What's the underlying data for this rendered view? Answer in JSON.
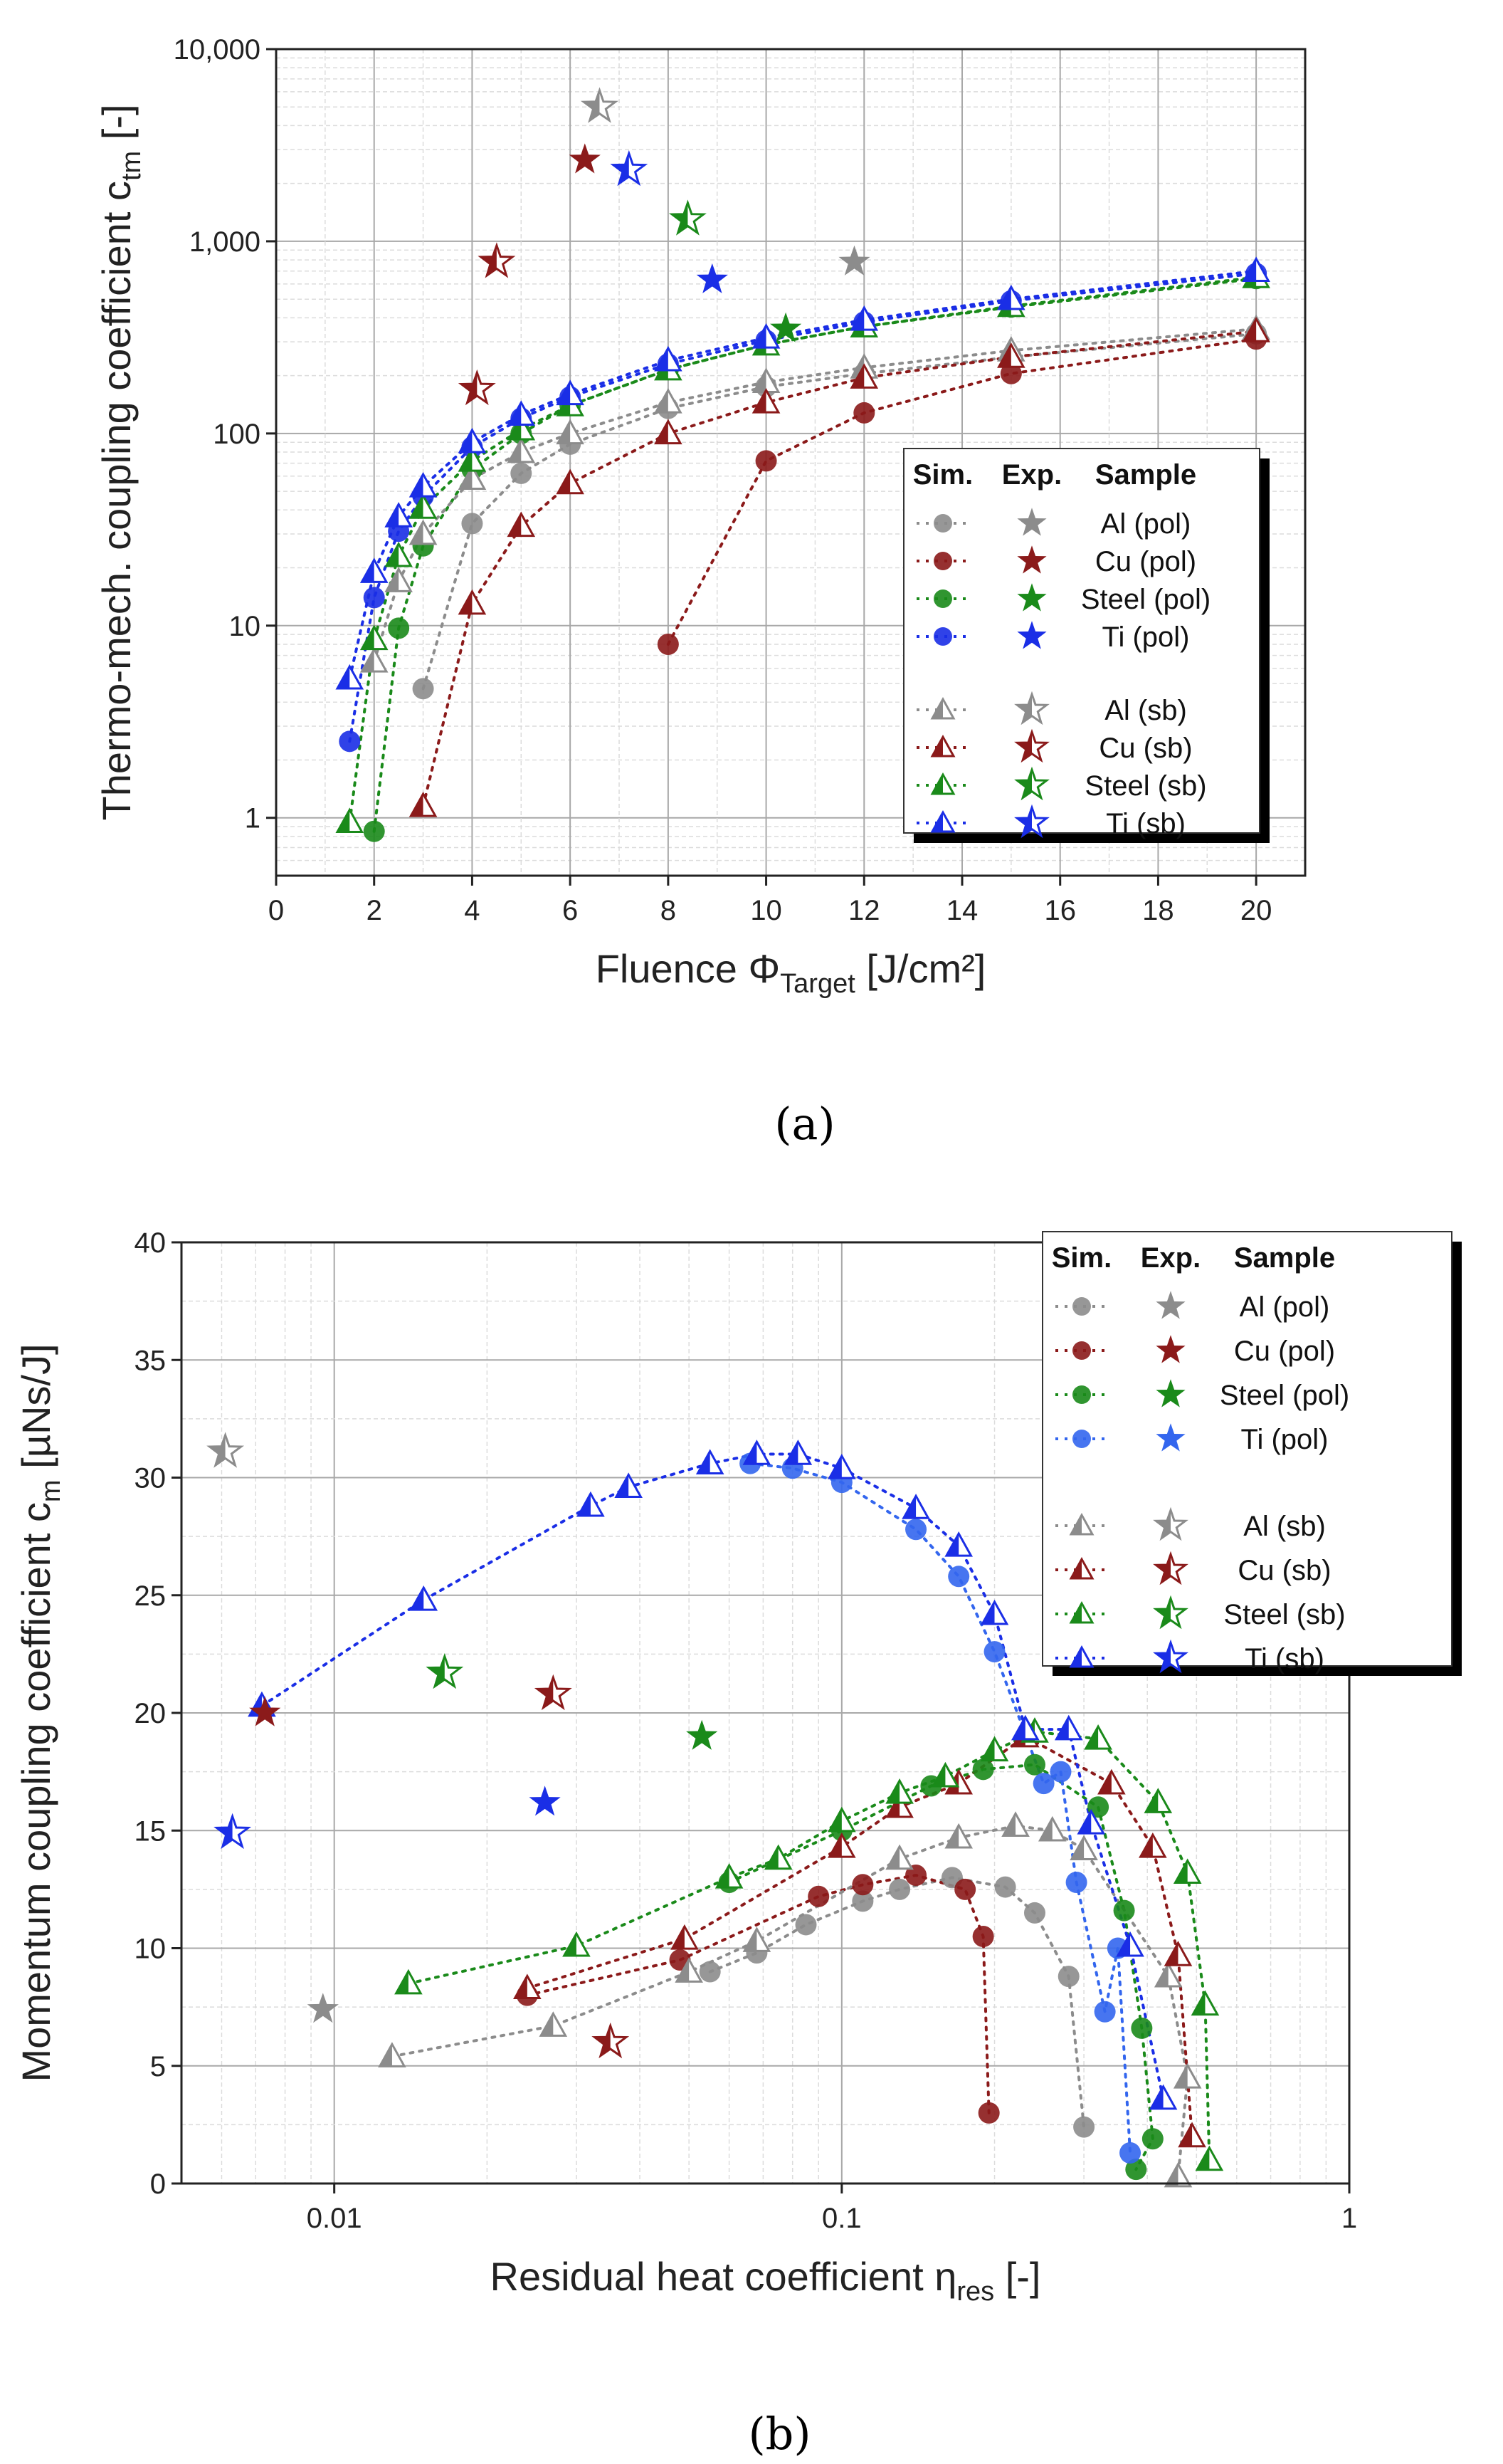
{
  "colors": {
    "Al": "#8c8c8c",
    "Cu": "#8b1a1a",
    "Steel": "#1a8a1a",
    "Ti": "#1a2ee6",
    "Ti_b": "#3366ee"
  },
  "chart_data": [
    {
      "type": "scatter",
      "panel_label": "(a)",
      "title": "",
      "ylabel": "Thermo-mech. coupling coefficient c",
      "ylabel_sub": "tm",
      "ylabel_suffix": " [-]",
      "xlabel": "Fluence Φ",
      "xlabel_sub": "Target",
      "xlabel_suffix": " [J/cm²]",
      "x_scale": "linear",
      "y_scale": "log",
      "xlim": [
        0,
        21
      ],
      "ylim": [
        0.5,
        10000
      ],
      "x_ticks": [
        0,
        2,
        4,
        6,
        8,
        10,
        12,
        14,
        16,
        18,
        20
      ],
      "x_tick_labels": [
        "0",
        "2",
        "4",
        "6",
        "8",
        "10",
        "12",
        "14",
        "16",
        "18",
        "20"
      ],
      "y_ticks": [
        1,
        10,
        100,
        1000,
        10000
      ],
      "y_tick_labels": [
        "1",
        "10",
        "100",
        "1,000",
        "10,000"
      ],
      "grid": true,
      "legend": {
        "placement": "bottom-right",
        "headers": [
          "Sim.",
          "Exp.",
          "Sample"
        ],
        "entries": [
          "Al (pol)",
          "Cu (pol)",
          "Steel (pol)",
          "Ti (pol)",
          "Al (sb)",
          "Cu (sb)",
          "Steel (sb)",
          "Ti (sb)"
        ]
      },
      "series": [
        {
          "name": "Al (pol) sim",
          "material": "Al",
          "marker": "circle",
          "x": [
            3,
            4,
            5,
            6,
            8,
            10,
            12,
            15,
            20
          ],
          "values": [
            4.7,
            34,
            62,
            88,
            135,
            175,
            205,
            250,
            330
          ]
        },
        {
          "name": "Cu (pol) sim",
          "material": "Cu",
          "marker": "circle",
          "x": [
            8,
            10,
            12,
            15,
            20
          ],
          "values": [
            8,
            72,
            128,
            205,
            310
          ]
        },
        {
          "name": "Steel (pol) sim",
          "material": "Steel",
          "marker": "circle",
          "x": [
            2,
            2.5,
            3,
            4,
            5,
            6,
            8,
            10,
            12,
            15,
            20
          ],
          "values": [
            0.85,
            9.7,
            26,
            65,
            100,
            140,
            215,
            290,
            360,
            455,
            640
          ]
        },
        {
          "name": "Ti (pol) sim",
          "material": "Ti",
          "marker": "circle",
          "x": [
            1.5,
            2,
            2.5,
            3,
            4,
            5,
            6,
            8,
            10,
            12,
            15,
            20
          ],
          "values": [
            2.5,
            14,
            31,
            47,
            85,
            120,
            155,
            230,
            305,
            380,
            490,
            680
          ]
        },
        {
          "name": "Al (sb) sim",
          "material": "Al",
          "marker": "triangle",
          "x": [
            2,
            2.5,
            3,
            4,
            5,
            6,
            8,
            10,
            12,
            15,
            20
          ],
          "values": [
            6.5,
            17,
            30,
            58,
            80,
            100,
            145,
            185,
            220,
            270,
            350
          ]
        },
        {
          "name": "Cu (sb) sim",
          "material": "Cu",
          "marker": "triangle",
          "x": [
            3,
            4,
            5,
            6,
            8,
            10,
            12,
            15,
            20
          ],
          "values": [
            1.15,
            13,
            33,
            55,
            100,
            145,
            195,
            250,
            340
          ]
        },
        {
          "name": "Steel (sb) sim",
          "material": "Steel",
          "marker": "triangle",
          "x": [
            1.5,
            2,
            2.5,
            3,
            4,
            5,
            6,
            8,
            10,
            12,
            15,
            20
          ],
          "values": [
            0.95,
            8.5,
            23,
            41,
            72,
            105,
            140,
            215,
            290,
            360,
            460,
            650
          ]
        },
        {
          "name": "Ti (sb) sim",
          "material": "Ti",
          "marker": "triangle",
          "x": [
            1.5,
            2,
            2.5,
            3,
            4,
            5,
            6,
            8,
            10,
            12,
            15,
            20
          ],
          "values": [
            5.3,
            19,
            37,
            53,
            90,
            125,
            160,
            240,
            315,
            390,
            500,
            700
          ]
        },
        {
          "name": "Al (pol) exp",
          "material": "Al",
          "marker": "star",
          "x": [
            11.8
          ],
          "values": [
            780
          ]
        },
        {
          "name": "Cu (pol) exp",
          "material": "Cu",
          "marker": "star",
          "x": [
            6.3
          ],
          "values": [
            2650
          ]
        },
        {
          "name": "Steel (pol) exp",
          "material": "Steel",
          "marker": "star",
          "x": [
            10.4
          ],
          "values": [
            350
          ]
        },
        {
          "name": "Ti (pol) exp",
          "material": "Ti",
          "marker": "star",
          "x": [
            8.9
          ],
          "values": [
            630
          ]
        },
        {
          "name": "Al (sb) exp",
          "material": "Al",
          "marker": "hstar",
          "x": [
            6.6
          ],
          "values": [
            5000
          ]
        },
        {
          "name": "Cu (sb) exp",
          "material": "Cu",
          "marker": "hstar",
          "x": [
            4.1,
            4.5
          ],
          "values": [
            170,
            780
          ]
        },
        {
          "name": "Steel (sb) exp",
          "material": "Steel",
          "marker": "hstar",
          "x": [
            8.4
          ],
          "values": [
            1300
          ]
        },
        {
          "name": "Ti (sb) exp",
          "material": "Ti",
          "marker": "hstar",
          "x": [
            7.2
          ],
          "values": [
            2350
          ]
        }
      ]
    },
    {
      "type": "scatter",
      "panel_label": "(b)",
      "title": "",
      "ylabel": "Momentum coupling coefficient c",
      "ylabel_sub": "m",
      "ylabel_suffix": " [µNs/J]",
      "xlabel": "Residual heat coefficient η",
      "xlabel_sub": "res",
      "xlabel_suffix": " [-]",
      "x_scale": "log",
      "y_scale": "linear",
      "xlim": [
        0.005,
        1
      ],
      "ylim": [
        0,
        40
      ],
      "x_ticks": [
        0.01,
        0.1,
        1
      ],
      "x_tick_labels": [
        "0.01",
        "0.1",
        "1"
      ],
      "y_ticks": [
        0,
        5,
        10,
        15,
        20,
        25,
        30,
        35,
        40
      ],
      "y_tick_labels": [
        "0",
        "5",
        "10",
        "15",
        "20",
        "25",
        "30",
        "35",
        "40"
      ],
      "grid": true,
      "legend": {
        "placement": "top-right",
        "headers": [
          "Sim.",
          "Exp.",
          "Sample"
        ],
        "entries": [
          "Al (pol)",
          "Cu (pol)",
          "Steel (pol)",
          "Ti (pol)",
          "Al (sb)",
          "Cu (sb)",
          "Steel (sb)",
          "Ti (sb)"
        ]
      },
      "series": [
        {
          "name": "Al (pol) sim",
          "material": "Al",
          "marker": "circle",
          "x": [
            0.055,
            0.068,
            0.085,
            0.11,
            0.13,
            0.165,
            0.21,
            0.24,
            0.28,
            0.3
          ],
          "values": [
            9,
            9.8,
            11,
            12,
            12.5,
            13,
            12.6,
            11.5,
            8.8,
            2.4
          ]
        },
        {
          "name": "Cu (pol) sim",
          "material": "Cu",
          "marker": "circle",
          "x": [
            0.024,
            0.048,
            0.09,
            0.11,
            0.14,
            0.175,
            0.19,
            0.195
          ],
          "values": [
            8,
            9.5,
            12.2,
            12.7,
            13.1,
            12.5,
            10.5,
            3
          ]
        },
        {
          "name": "Steel (pol) sim",
          "material": "Steel",
          "marker": "circle",
          "x": [
            0.06,
            0.1,
            0.15,
            0.19,
            0.24,
            0.32,
            0.36,
            0.39,
            0.41,
            0.38
          ],
          "values": [
            12.8,
            15,
            16.9,
            17.6,
            17.8,
            16,
            11.6,
            6.6,
            1.9,
            0.6
          ]
        },
        {
          "name": "Ti (pol) sim",
          "material": "Ti_b",
          "marker": "circle",
          "x": [
            0.066,
            0.08,
            0.1,
            0.14,
            0.17,
            0.2,
            0.25,
            0.27,
            0.29,
            0.33,
            0.35,
            0.37
          ],
          "values": [
            30.6,
            30.4,
            29.8,
            27.8,
            25.8,
            22.6,
            17,
            17.5,
            12.8,
            7.3,
            10,
            1.3
          ]
        },
        {
          "name": "Al (sb) sim",
          "material": "Al",
          "marker": "triangle",
          "x": [
            0.013,
            0.027,
            0.05,
            0.068,
            0.13,
            0.17,
            0.22,
            0.26,
            0.3,
            0.44,
            0.48,
            0.46
          ],
          "values": [
            5.4,
            6.7,
            9,
            10.3,
            13.8,
            14.7,
            15.2,
            15,
            14.2,
            8.8,
            4.5,
            0.3
          ]
        },
        {
          "name": "Cu (sb) sim",
          "material": "Cu",
          "marker": "triangle",
          "x": [
            0.024,
            0.049,
            0.1,
            0.13,
            0.17,
            0.23,
            0.34,
            0.41,
            0.46,
            0.49
          ],
          "values": [
            8.3,
            10.4,
            14.3,
            16,
            17,
            19,
            17,
            14.3,
            9.7,
            2
          ]
        },
        {
          "name": "Steel (sb) sim",
          "material": "Steel",
          "marker": "triangle",
          "x": [
            0.014,
            0.03,
            0.06,
            0.075,
            0.1,
            0.13,
            0.16,
            0.2,
            0.24,
            0.32,
            0.42,
            0.48,
            0.52,
            0.53
          ],
          "values": [
            8.5,
            10.1,
            13,
            13.8,
            15.4,
            16.6,
            17.3,
            18.4,
            19.2,
            18.9,
            16.2,
            13.2,
            7.6,
            1
          ]
        },
        {
          "name": "Ti (sb) sim",
          "material": "Ti",
          "marker": "triangle",
          "x": [
            0.0072,
            0.015,
            0.032,
            0.038,
            0.055,
            0.068,
            0.082,
            0.1,
            0.14,
            0.17,
            0.2,
            0.23,
            0.28,
            0.31,
            0.37,
            0.43
          ],
          "values": [
            20.3,
            24.8,
            28.8,
            29.6,
            30.6,
            31,
            31,
            30.4,
            28.7,
            27.1,
            24.2,
            19.3,
            19.3,
            15.3,
            10.1,
            3.6
          ]
        },
        {
          "name": "Al (pol) exp",
          "material": "Al",
          "marker": "star",
          "x": [
            0.0095
          ],
          "values": [
            7.4
          ]
        },
        {
          "name": "Cu (pol) exp",
          "material": "Cu",
          "marker": "star",
          "x": [
            0.0073
          ],
          "values": [
            20
          ]
        },
        {
          "name": "Steel (pol) exp",
          "material": "Steel",
          "marker": "star",
          "x": [
            0.053
          ],
          "values": [
            19
          ]
        },
        {
          "name": "Ti (pol) exp",
          "material": "Ti",
          "marker": "star",
          "x": [
            0.026
          ],
          "values": [
            16.2
          ]
        },
        {
          "name": "Al (sb) exp",
          "material": "Al",
          "marker": "hstar",
          "x": [
            0.0061
          ],
          "values": [
            31.1
          ]
        },
        {
          "name": "Cu (sb) exp",
          "material": "Cu",
          "marker": "hstar",
          "x": [
            0.027,
            0.035
          ],
          "values": [
            20.8,
            6
          ]
        },
        {
          "name": "Steel (sb) exp",
          "material": "Steel",
          "marker": "hstar",
          "x": [
            0.0165
          ],
          "values": [
            21.7
          ]
        },
        {
          "name": "Ti (sb) exp",
          "material": "Ti",
          "marker": "hstar",
          "x": [
            0.0063
          ],
          "values": [
            14.9
          ]
        }
      ]
    }
  ]
}
